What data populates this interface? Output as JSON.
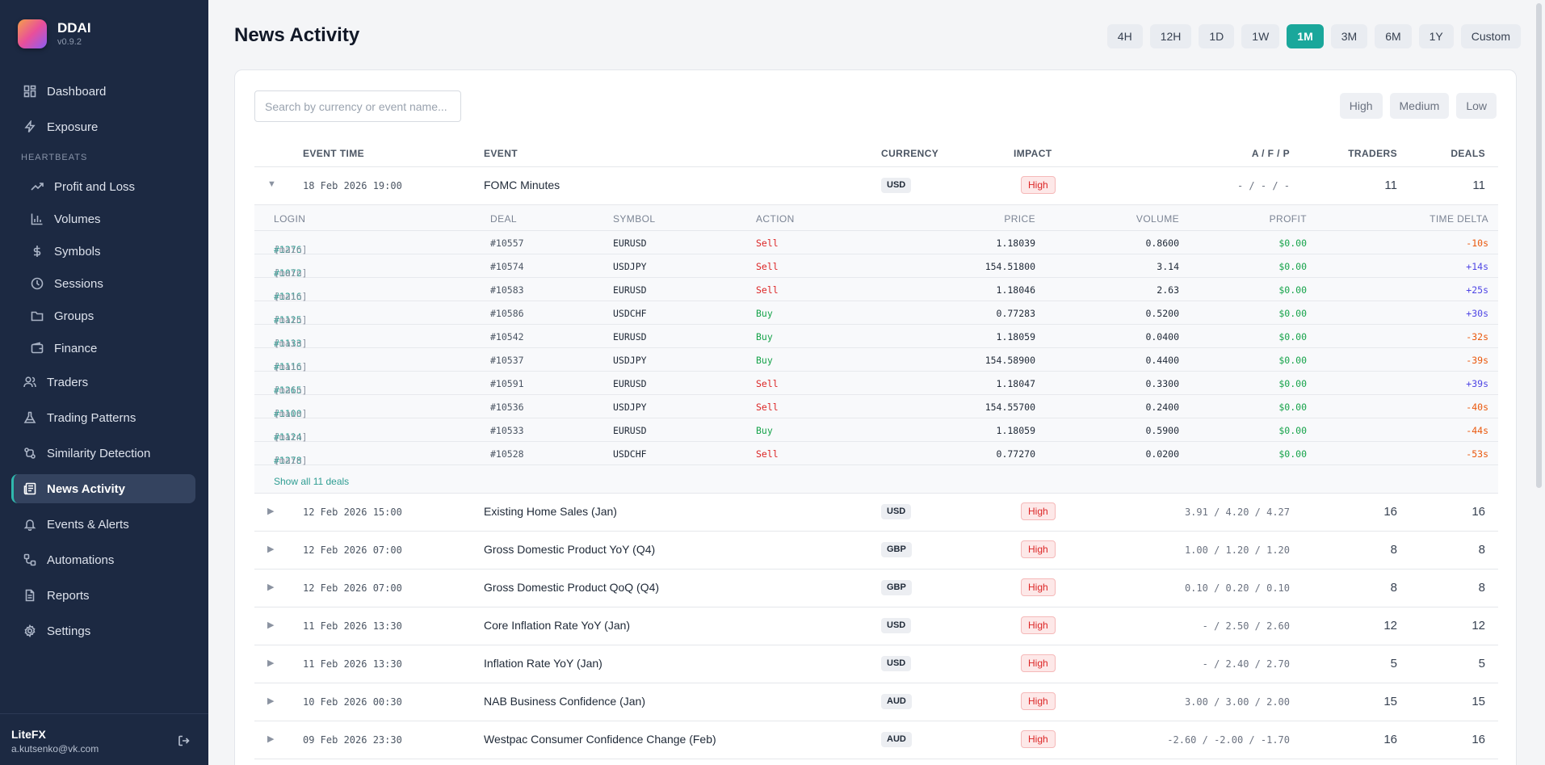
{
  "app": {
    "name": "DDAI",
    "version": "v0.9.2"
  },
  "nav": {
    "dashboard": "Dashboard",
    "exposure": "Exposure",
    "section_heartbeats": "HEARTBEATS",
    "profit_loss": "Profit and Loss",
    "volumes": "Volumes",
    "symbols": "Symbols",
    "sessions": "Sessions",
    "groups": "Groups",
    "finance": "Finance",
    "traders": "Traders",
    "trading_patterns": "Trading Patterns",
    "similarity": "Similarity Detection",
    "news_activity": "News Activity",
    "events_alerts": "Events & Alerts",
    "automations": "Automations",
    "reports": "Reports",
    "settings": "Settings"
  },
  "user": {
    "org": "LiteFX",
    "email": "a.kutsenko@vk.com"
  },
  "page": {
    "title": "News Activity"
  },
  "ranges": [
    "4H",
    "12H",
    "1D",
    "1W",
    "1M",
    "3M",
    "6M",
    "1Y",
    "Custom"
  ],
  "active_range": "1M",
  "search": {
    "placeholder": "Search by currency or event name..."
  },
  "impact_filters": [
    "High",
    "Medium",
    "Low"
  ],
  "table": {
    "headers": {
      "event_time": "EVENT TIME",
      "event": "EVENT",
      "currency": "CURRENCY",
      "impact": "IMPACT",
      "afp": "A / F / P",
      "traders": "TRADERS",
      "deals": "DEALS"
    },
    "expanded": {
      "time": "18 Feb 2026 19:00",
      "event": "FOMC Minutes",
      "currency": "USD",
      "impact": "High",
      "afp": "- / - / -",
      "traders": "11",
      "deals": "11"
    },
    "deal_headers": {
      "login": "LOGIN",
      "deal": "DEAL",
      "symbol": "SYMBOL",
      "action": "ACTION",
      "price": "PRICE",
      "volume": "VOLUME",
      "profit": "PROFIT",
      "delta": "TIME DELTA"
    },
    "deals": [
      {
        "login": "#1276",
        "tag": "[main]",
        "deal": "#10557",
        "symbol": "EURUSD",
        "action": "Sell",
        "price": "1.18039",
        "volume": "0.8600",
        "profit": "$0.00",
        "delta": "-10s"
      },
      {
        "login": "#1072",
        "tag": "[main]",
        "deal": "#10574",
        "symbol": "USDJPY",
        "action": "Sell",
        "price": "154.51800",
        "volume": "3.14",
        "profit": "$0.00",
        "delta": "+14s"
      },
      {
        "login": "#1216",
        "tag": "[main]",
        "deal": "#10583",
        "symbol": "EURUSD",
        "action": "Sell",
        "price": "1.18046",
        "volume": "2.63",
        "profit": "$0.00",
        "delta": "+25s"
      },
      {
        "login": "#1125",
        "tag": "[main]",
        "deal": "#10586",
        "symbol": "USDCHF",
        "action": "Buy",
        "price": "0.77283",
        "volume": "0.5200",
        "profit": "$0.00",
        "delta": "+30s"
      },
      {
        "login": "#1133",
        "tag": "[main]",
        "deal": "#10542",
        "symbol": "EURUSD",
        "action": "Buy",
        "price": "1.18059",
        "volume": "0.0400",
        "profit": "$0.00",
        "delta": "-32s"
      },
      {
        "login": "#1116",
        "tag": "[main]",
        "deal": "#10537",
        "symbol": "USDJPY",
        "action": "Buy",
        "price": "154.58900",
        "volume": "0.4400",
        "profit": "$0.00",
        "delta": "-39s"
      },
      {
        "login": "#1265",
        "tag": "[main]",
        "deal": "#10591",
        "symbol": "EURUSD",
        "action": "Sell",
        "price": "1.18047",
        "volume": "0.3300",
        "profit": "$0.00",
        "delta": "+39s"
      },
      {
        "login": "#1100",
        "tag": "[main]",
        "deal": "#10536",
        "symbol": "USDJPY",
        "action": "Sell",
        "price": "154.55700",
        "volume": "0.2400",
        "profit": "$0.00",
        "delta": "-40s"
      },
      {
        "login": "#1124",
        "tag": "[main]",
        "deal": "#10533",
        "symbol": "EURUSD",
        "action": "Buy",
        "price": "1.18059",
        "volume": "0.5900",
        "profit": "$0.00",
        "delta": "-44s"
      },
      {
        "login": "#1278",
        "tag": "[main]",
        "deal": "#10528",
        "symbol": "USDCHF",
        "action": "Sell",
        "price": "0.77270",
        "volume": "0.0200",
        "profit": "$0.00",
        "delta": "-53s"
      }
    ],
    "show_all": "Show all 11 deals",
    "events": [
      {
        "time": "12 Feb 2026 15:00",
        "event": "Existing Home Sales (Jan)",
        "currency": "USD",
        "impact": "High",
        "afp": "3.91 / 4.20 / 4.27",
        "traders": "16",
        "deals": "16"
      },
      {
        "time": "12 Feb 2026 07:00",
        "event": "Gross Domestic Product YoY (Q4)",
        "currency": "GBP",
        "impact": "High",
        "afp": "1.00 / 1.20 / 1.20",
        "traders": "8",
        "deals": "8"
      },
      {
        "time": "12 Feb 2026 07:00",
        "event": "Gross Domestic Product QoQ (Q4)",
        "currency": "GBP",
        "impact": "High",
        "afp": "0.10 / 0.20 / 0.10",
        "traders": "8",
        "deals": "8"
      },
      {
        "time": "11 Feb 2026 13:30",
        "event": "Core Inflation Rate YoY (Jan)",
        "currency": "USD",
        "impact": "High",
        "afp": "- / 2.50 / 2.60",
        "traders": "12",
        "deals": "12"
      },
      {
        "time": "11 Feb 2026 13:30",
        "event": "Inflation Rate YoY (Jan)",
        "currency": "USD",
        "impact": "High",
        "afp": "- / 2.40 / 2.70",
        "traders": "5",
        "deals": "5"
      },
      {
        "time": "10 Feb 2026 00:30",
        "event": "NAB Business Confidence (Jan)",
        "currency": "AUD",
        "impact": "High",
        "afp": "3.00 / 3.00 / 2.00",
        "traders": "15",
        "deals": "15"
      },
      {
        "time": "09 Feb 2026 23:30",
        "event": "Westpac Consumer Confidence Change (Feb)",
        "currency": "AUD",
        "impact": "High",
        "afp": "-2.60 / -2.00 / -1.70",
        "traders": "16",
        "deals": "16"
      }
    ]
  }
}
